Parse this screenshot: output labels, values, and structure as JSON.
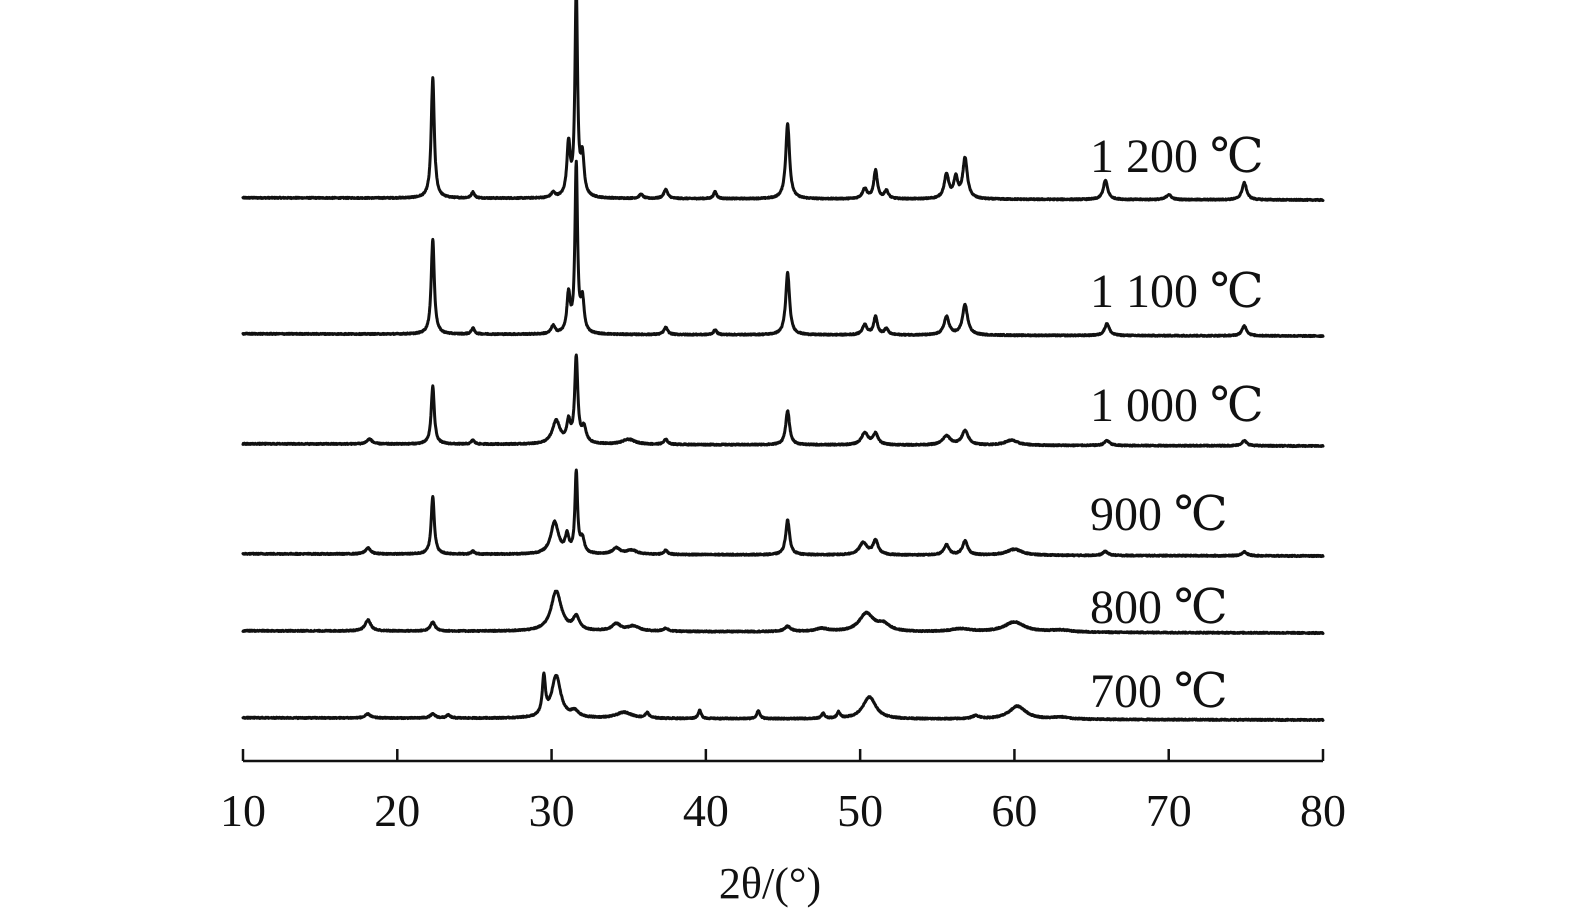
{
  "chart_data": {
    "type": "line",
    "title": "",
    "xlabel": "2θ/(°)",
    "ylabel": "",
    "xlim": [
      10,
      80
    ],
    "xticks": [
      10,
      20,
      30,
      40,
      50,
      60,
      70,
      80
    ],
    "grid": false,
    "legend": "inline labels at right of each trace",
    "series": [
      {
        "name": "1 200 ℃",
        "baseline": [
          6.2,
          4.0
        ],
        "peaks": [
          [
            22.3,
            120,
            0.12
          ],
          [
            24.9,
            6,
            0.12
          ],
          [
            30.1,
            5,
            0.15
          ],
          [
            31.1,
            52,
            0.13
          ],
          [
            31.6,
            205,
            0.1
          ],
          [
            32.0,
            38,
            0.13
          ],
          [
            35.8,
            4,
            0.15
          ],
          [
            37.4,
            9,
            0.15
          ],
          [
            40.6,
            7,
            0.12
          ],
          [
            45.3,
            75,
            0.15
          ],
          [
            50.3,
            10,
            0.18
          ],
          [
            51.0,
            28,
            0.14
          ],
          [
            51.7,
            8,
            0.15
          ],
          [
            55.6,
            24,
            0.18
          ],
          [
            56.2,
            20,
            0.15
          ],
          [
            56.8,
            40,
            0.18
          ],
          [
            65.9,
            19,
            0.17
          ],
          [
            70.0,
            5,
            0.2
          ],
          [
            74.9,
            17,
            0.18
          ]
        ]
      },
      {
        "name": "1 100 ℃",
        "baseline": [
          6.2,
          4.0
        ],
        "peaks": [
          [
            22.3,
            95,
            0.12
          ],
          [
            24.9,
            6,
            0.12
          ],
          [
            30.1,
            8,
            0.15
          ],
          [
            31.1,
            38,
            0.13
          ],
          [
            31.6,
            168,
            0.1
          ],
          [
            32.0,
            32,
            0.13
          ],
          [
            37.4,
            7,
            0.15
          ],
          [
            40.6,
            5,
            0.12
          ],
          [
            45.3,
            62,
            0.15
          ],
          [
            50.3,
            10,
            0.18
          ],
          [
            51.0,
            18,
            0.15
          ],
          [
            51.7,
            6,
            0.15
          ],
          [
            55.6,
            18,
            0.2
          ],
          [
            56.8,
            30,
            0.2
          ],
          [
            66.0,
            12,
            0.18
          ],
          [
            74.9,
            10,
            0.18
          ]
        ]
      },
      {
        "name": "1 000 ℃",
        "baseline": [
          6.2,
          4.0
        ],
        "peaks": [
          [
            18.2,
            5,
            0.2
          ],
          [
            22.3,
            58,
            0.12
          ],
          [
            24.9,
            4,
            0.12
          ],
          [
            30.3,
            23,
            0.3
          ],
          [
            31.1,
            20,
            0.14
          ],
          [
            31.6,
            85,
            0.12
          ],
          [
            32.1,
            15,
            0.18
          ],
          [
            35.0,
            5,
            0.5
          ],
          [
            37.4,
            5,
            0.15
          ],
          [
            45.3,
            34,
            0.15
          ],
          [
            50.3,
            12,
            0.25
          ],
          [
            51.0,
            11,
            0.2
          ],
          [
            55.6,
            9,
            0.3
          ],
          [
            56.8,
            14,
            0.25
          ],
          [
            59.8,
            5,
            0.5
          ],
          [
            66.0,
            5,
            0.2
          ],
          [
            74.9,
            5,
            0.2
          ]
        ]
      },
      {
        "name": "900 ℃",
        "baseline": [
          6.2,
          4.0
        ],
        "peaks": [
          [
            18.1,
            6,
            0.2
          ],
          [
            22.3,
            58,
            0.12
          ],
          [
            24.9,
            3,
            0.12
          ],
          [
            30.2,
            32,
            0.3
          ],
          [
            31.0,
            17,
            0.14
          ],
          [
            31.6,
            80,
            0.1
          ],
          [
            32.0,
            14,
            0.15
          ],
          [
            34.2,
            6,
            0.3
          ],
          [
            35.2,
            4,
            0.4
          ],
          [
            37.4,
            4,
            0.15
          ],
          [
            45.3,
            35,
            0.15
          ],
          [
            50.2,
            12,
            0.3
          ],
          [
            51.0,
            14,
            0.2
          ],
          [
            55.6,
            10,
            0.2
          ],
          [
            56.8,
            14,
            0.2
          ],
          [
            60.0,
            6,
            0.6
          ],
          [
            65.9,
            4,
            0.2
          ],
          [
            74.9,
            4,
            0.2
          ]
        ]
      },
      {
        "name": "800 ℃",
        "baseline": [
          6.2,
          4.0
        ],
        "peaks": [
          [
            18.1,
            11,
            0.22
          ],
          [
            22.3,
            9,
            0.18
          ],
          [
            30.3,
            40,
            0.4
          ],
          [
            31.6,
            13,
            0.25
          ],
          [
            34.2,
            7,
            0.35
          ],
          [
            35.3,
            5,
            0.45
          ],
          [
            37.4,
            3,
            0.2
          ],
          [
            45.3,
            5,
            0.25
          ],
          [
            47.5,
            3,
            0.5
          ],
          [
            50.4,
            18,
            0.55
          ],
          [
            51.5,
            7,
            0.5
          ],
          [
            56.5,
            3,
            0.8
          ],
          [
            60.0,
            10,
            0.8
          ],
          [
            63.0,
            2,
            0.8
          ]
        ]
      },
      {
        "name": "700 ℃",
        "baseline": [
          6.2,
          4.0
        ],
        "peaks": [
          [
            18.1,
            4,
            0.2
          ],
          [
            22.3,
            4,
            0.2
          ],
          [
            23.3,
            3,
            0.15
          ],
          [
            29.5,
            38,
            0.12
          ],
          [
            30.3,
            42,
            0.35
          ],
          [
            31.5,
            6,
            0.3
          ],
          [
            34.7,
            6,
            0.6
          ],
          [
            36.2,
            5,
            0.15
          ],
          [
            39.6,
            8,
            0.12
          ],
          [
            43.4,
            8,
            0.12
          ],
          [
            47.6,
            5,
            0.12
          ],
          [
            48.6,
            6,
            0.12
          ],
          [
            50.6,
            22,
            0.5
          ],
          [
            57.5,
            3,
            0.3
          ],
          [
            60.2,
            13,
            0.65
          ],
          [
            63.0,
            2,
            0.6
          ]
        ]
      }
    ]
  }
}
